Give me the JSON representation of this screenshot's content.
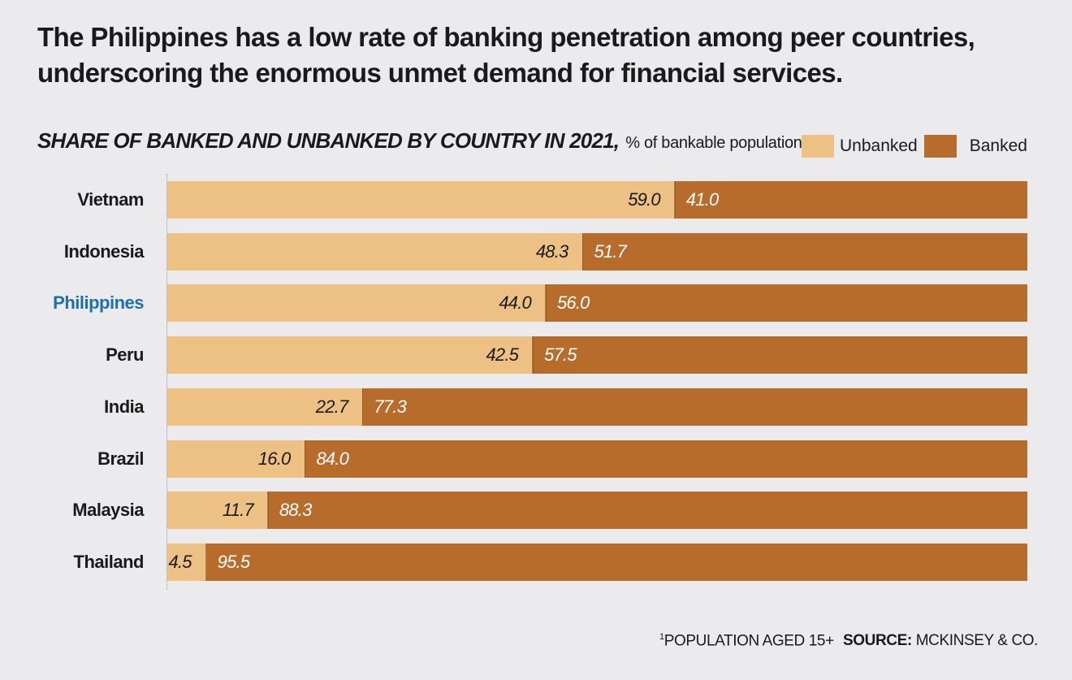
{
  "headline": "The Philippines has a low rate of banking penetration among peer countries, underscoring the enormous unmet demand for financial services.",
  "colors": {
    "unbanked": "#ecc183",
    "banked": "#b86c2c",
    "highlight_label": "#1e6fad",
    "background": "#ebebed"
  },
  "chart_data": {
    "type": "bar",
    "orientation": "horizontal",
    "stacked": true,
    "title": "SHARE OF BANKED AND UNBANKED BY COUNTRY IN 2021,",
    "unit": "% of bankable population",
    "unit_footnote_marker": "1",
    "categories": [
      "Vietnam",
      "Indonesia",
      "Philippines",
      "Peru",
      "India",
      "Brazil",
      "Malaysia",
      "Thailand"
    ],
    "highlighted_category": "Philippines",
    "series": [
      {
        "name": "Unbanked",
        "values": [
          59.0,
          48.3,
          44.0,
          42.5,
          22.7,
          16.0,
          11.7,
          4.5
        ]
      },
      {
        "name": "Banked",
        "values": [
          41.0,
          51.7,
          56.0,
          57.5,
          77.3,
          84.0,
          88.3,
          95.5
        ]
      }
    ],
    "xlim": [
      0,
      100
    ],
    "legend_position": "top-right",
    "grid": false
  },
  "footnote": {
    "marker": "1",
    "text": "POPULATION AGED 15+"
  },
  "source": {
    "label": "SOURCE:",
    "text": "MCKINSEY & CO."
  }
}
